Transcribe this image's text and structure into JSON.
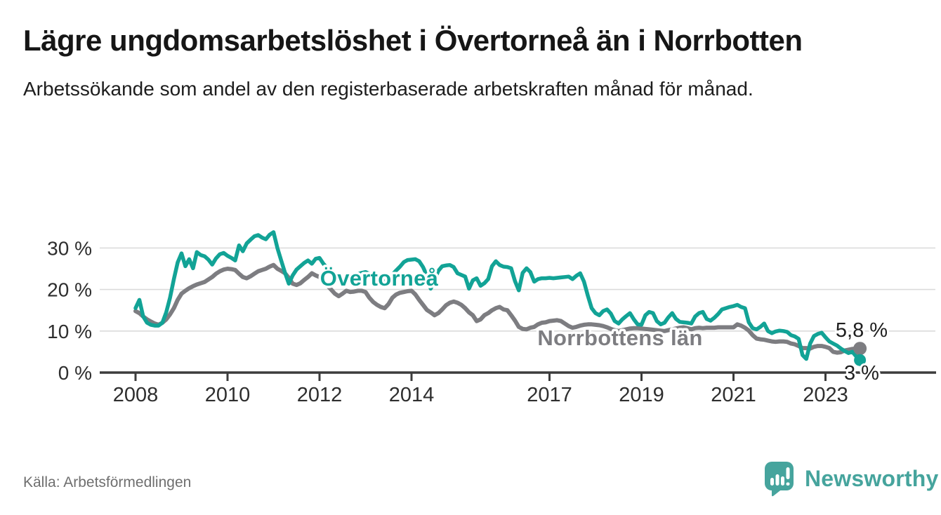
{
  "header": {
    "title": "Lägre ungdomsarbetslöshet i Övertorneå än i Norrbotten",
    "subtitle": "Arbetssökande som andel av den registerbaserade arbetskraften månad för månad."
  },
  "chart": {
    "series_labels": {
      "overtornea": "Övertorneå",
      "norrbotten": "Norrbottens län"
    },
    "end_values": {
      "norrbotten": "5,8 %",
      "overtornea": "3 %"
    }
  },
  "footer": {
    "source": "Källa: Arbetsförmedlingen",
    "brand": "Newsworthy"
  },
  "colors": {
    "overtornea_teal": "#12A396",
    "norrbotten_gray": "#7D7D81",
    "brand_teal": "#46A49D"
  },
  "chart_data": {
    "type": "line",
    "title": "Lägre ungdomsarbetslöshet i Övertorneå än i Norrbotten",
    "subtitle": "Arbetssökande som andel av den registerbaserade arbetskraften månad för månad.",
    "unit": "percent of registered labour force",
    "x_label": "",
    "y_label": "",
    "grid": "horizontal",
    "legend_position": "inline-labels",
    "x_ticks": [
      2008,
      2010,
      2012,
      2014,
      2017,
      2019,
      2021,
      2023
    ],
    "y_ticks": [
      0,
      10,
      20,
      30
    ],
    "y_tick_labels": [
      "0 %",
      "10 %",
      "20 %",
      "30 %"
    ],
    "x_range": [
      2008.0,
      2023.9
    ],
    "y_range": [
      0,
      35
    ],
    "end_labels": [
      {
        "series": "Norrbottens län",
        "text": "5,8 %"
      },
      {
        "series": "Övertorneå",
        "text": "3 %"
      }
    ],
    "series": [
      {
        "name": "Norrbottens län",
        "color": "#7D7D81",
        "start_year": 2008,
        "start_month": 1,
        "frequency": "monthly",
        "values": [
          14.8,
          14.3,
          13.5,
          12.8,
          12.3,
          11.8,
          11.5,
          12.0,
          12.8,
          14.0,
          15.5,
          17.5,
          19.0,
          19.7,
          20.3,
          20.8,
          21.2,
          21.5,
          21.8,
          22.4,
          23.0,
          23.8,
          24.4,
          24.8,
          25.0,
          24.9,
          24.7,
          23.8,
          23.0,
          22.7,
          23.2,
          23.8,
          24.4,
          24.7,
          25.0,
          25.5,
          25.9,
          25.0,
          24.5,
          23.9,
          22.8,
          21.4,
          21.1,
          21.5,
          22.3,
          23.0,
          23.9,
          23.4,
          23.0,
          22.0,
          21.0,
          20.0,
          19.0,
          18.4,
          19.0,
          19.7,
          19.4,
          19.5,
          19.7,
          19.7,
          19.4,
          18.0,
          17.0,
          16.3,
          15.8,
          15.5,
          16.5,
          18.0,
          18.8,
          19.2,
          19.4,
          19.6,
          19.7,
          18.8,
          17.5,
          16.3,
          15.1,
          14.5,
          13.8,
          14.3,
          15.2,
          16.2,
          16.8,
          17.1,
          16.8,
          16.3,
          15.5,
          14.5,
          13.8,
          12.4,
          12.8,
          13.8,
          14.3,
          15.0,
          15.5,
          15.8,
          15.2,
          15.0,
          13.8,
          12.5,
          11.0,
          10.5,
          10.4,
          10.8,
          11.0,
          11.6,
          12.0,
          12.1,
          12.4,
          12.5,
          12.6,
          12.4,
          11.8,
          11.2,
          10.8,
          11.0,
          11.3,
          11.5,
          11.6,
          11.6,
          11.5,
          11.4,
          11.2,
          10.9,
          10.5,
          10.2,
          10.0,
          10.2,
          10.4,
          10.6,
          10.7,
          10.7,
          10.6,
          10.5,
          10.4,
          10.3,
          10.2,
          10.1,
          10.0,
          10.2,
          10.4,
          10.6,
          10.8,
          10.9,
          10.7,
          10.4,
          10.7,
          10.8,
          10.7,
          10.8,
          10.8,
          10.8,
          10.9,
          10.9,
          10.9,
          10.9,
          10.9,
          11.6,
          11.3,
          10.8,
          10.1,
          9.0,
          8.2,
          8.0,
          7.9,
          7.7,
          7.5,
          7.4,
          7.5,
          7.5,
          7.4,
          7.0,
          6.8,
          6.4,
          5.9,
          5.9,
          5.8,
          6.2,
          6.4,
          6.4,
          6.2,
          5.9,
          5.0,
          4.8,
          4.9,
          5.3,
          5.5,
          5.7,
          5.8,
          5.8
        ]
      },
      {
        "name": "Övertorneå",
        "color": "#12A396",
        "start_year": 2008,
        "start_month": 1,
        "frequency": "monthly",
        "values": [
          15.5,
          17.5,
          13.5,
          12.0,
          11.5,
          11.3,
          11.3,
          12.0,
          14.5,
          18.0,
          22.5,
          26.5,
          28.7,
          25.6,
          27.3,
          25.1,
          29.0,
          28.3,
          28.0,
          27.2,
          26.0,
          27.5,
          28.5,
          28.8,
          28.1,
          27.6,
          27.0,
          30.6,
          29.2,
          31.1,
          32.0,
          32.8,
          33.1,
          32.5,
          32.1,
          33.2,
          33.8,
          30.0,
          27.0,
          24.0,
          21.4,
          23.4,
          24.8,
          25.6,
          26.4,
          27.0,
          26.2,
          27.4,
          27.6,
          26.2,
          25.2,
          24.2,
          23.2,
          22.4,
          21.8,
          22.3,
          22.9,
          23.3,
          23.7,
          24.0,
          24.2,
          23.8,
          23.2,
          22.4,
          21.4,
          21.8,
          22.6,
          23.6,
          24.6,
          25.5,
          26.6,
          27.1,
          27.2,
          27.3,
          26.8,
          25.4,
          23.4,
          20.2,
          22.4,
          24.5,
          25.6,
          25.8,
          25.9,
          25.4,
          23.9,
          23.5,
          23.1,
          20.2,
          22.2,
          22.7,
          20.9,
          21.5,
          22.5,
          25.6,
          26.8,
          25.9,
          25.5,
          25.4,
          25.1,
          22.0,
          19.8,
          24.0,
          25.1,
          24.2,
          21.9,
          22.5,
          22.7,
          22.7,
          22.8,
          22.7,
          22.8,
          22.9,
          23.0,
          23.1,
          22.5,
          23.3,
          23.9,
          21.9,
          18.5,
          15.5,
          14.3,
          13.8,
          14.8,
          15.2,
          14.2,
          12.4,
          11.8,
          12.8,
          13.6,
          14.3,
          12.8,
          11.6,
          11.5,
          13.8,
          14.6,
          14.3,
          12.4,
          11.6,
          12.0,
          13.3,
          14.3,
          12.9,
          12.2,
          12.1,
          12.0,
          11.8,
          13.5,
          14.3,
          14.6,
          12.9,
          12.5,
          13.2,
          14.1,
          15.2,
          15.5,
          15.8,
          16.0,
          16.3,
          15.8,
          15.5,
          12.1,
          10.7,
          10.4,
          11.0,
          11.8,
          10.0,
          9.5,
          9.9,
          10.1,
          10.0,
          9.8,
          9.0,
          8.7,
          8.1,
          4.2,
          3.3,
          7.0,
          8.8,
          9.3,
          9.6,
          8.5,
          7.5,
          7.0,
          6.5,
          5.8,
          5.2,
          4.7,
          5.0,
          3.9,
          3.0
        ]
      }
    ]
  }
}
